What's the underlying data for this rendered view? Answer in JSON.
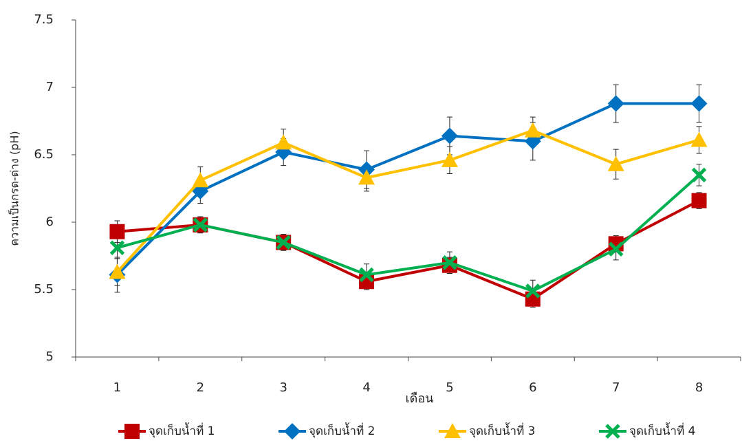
{
  "chart_data": {
    "type": "line",
    "x_label": "เดือน",
    "y_label": "ความเป็นกรด-ด่าง (pH)",
    "categories": [
      "1",
      "2",
      "3",
      "4",
      "5",
      "6",
      "7",
      "8"
    ],
    "ylim": [
      5,
      7.5
    ],
    "yticks": [
      5,
      5.5,
      6,
      6.5,
      7,
      7.5
    ],
    "grid": false,
    "legend": "bottom",
    "series": [
      {
        "name": "จุดเก็บน้ำที่ 1",
        "color": "#c00000",
        "marker": "square",
        "values": [
          5.93,
          5.98,
          5.85,
          5.56,
          5.68,
          5.43,
          5.84,
          6.16
        ],
        "errors": [
          0.08,
          0.06,
          0.06,
          0.06,
          0.06,
          0.06,
          0.06,
          0.06
        ]
      },
      {
        "name": "จุดเก็บน้ำที่ 2",
        "color": "#0070c0",
        "marker": "diamond",
        "values": [
          5.61,
          6.23,
          6.52,
          6.39,
          6.64,
          6.6,
          6.88,
          6.88
        ],
        "errors": [
          0.13,
          0.09,
          0.1,
          0.14,
          0.14,
          0.14,
          0.14,
          0.14
        ]
      },
      {
        "name": "จุดเก็บน้ำที่ 3",
        "color": "#ffc000",
        "marker": "triangle",
        "values": [
          5.63,
          6.31,
          6.59,
          6.33,
          6.46,
          6.68,
          6.43,
          6.61
        ],
        "errors": [
          0.1,
          0.1,
          0.1,
          0.1,
          0.1,
          0.1,
          0.11,
          0.1
        ]
      },
      {
        "name": "จุดเก็บน้ำที่ 4",
        "color": "#00b050",
        "marker": "x",
        "values": [
          5.81,
          5.98,
          5.85,
          5.61,
          5.7,
          5.49,
          5.8,
          6.35
        ],
        "errors": [
          0.08,
          0.06,
          0.06,
          0.08,
          0.08,
          0.08,
          0.08,
          0.08
        ]
      }
    ]
  }
}
